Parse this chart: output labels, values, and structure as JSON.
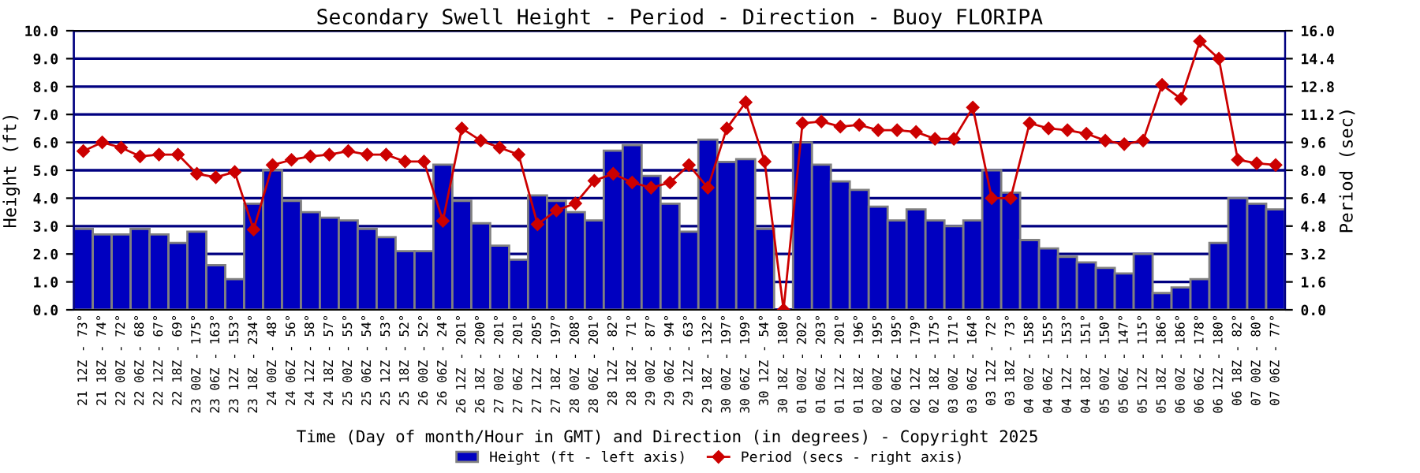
{
  "chart_data": {
    "type": "bar",
    "title": "Secondary Swell Height - Period - Direction - Buoy FLORIPA",
    "xlabel": "Time (Day of month/Hour in GMT) and Direction (in degrees) - Copyright 2025",
    "ylabel": "Height (ft)",
    "y2label": "Period (sec)",
    "categories": [
      "21 12Z - 73°",
      "21 18Z - 74°",
      "22 00Z - 72°",
      "22 06Z - 68°",
      "22 12Z - 67°",
      "22 18Z - 69°",
      "23 00Z - 175°",
      "23 06Z - 163°",
      "23 12Z - 153°",
      "23 18Z - 234°",
      "24 00Z - 48°",
      "24 06Z - 56°",
      "24 12Z - 58°",
      "24 18Z - 57°",
      "25 00Z - 55°",
      "25 06Z - 54°",
      "25 12Z - 53°",
      "25 18Z - 52°",
      "26 00Z - 52°",
      "26 06Z - 24°",
      "26 12Z - 201°",
      "26 18Z - 200°",
      "27 00Z - 201°",
      "27 06Z - 201°",
      "27 12Z - 205°",
      "27 18Z - 197°",
      "28 00Z - 208°",
      "28 06Z - 201°",
      "28 12Z - 82°",
      "28 18Z - 71°",
      "29 00Z - 87°",
      "29 06Z - 94°",
      "29 12Z - 63°",
      "29 18Z - 132°",
      "30 00Z - 197°",
      "30 06Z - 199°",
      "30 12Z - 54°",
      "30 18Z - 180°",
      "01 00Z - 202°",
      "01 06Z - 203°",
      "01 12Z - 201°",
      "01 18Z - 196°",
      "02 00Z - 195°",
      "02 06Z - 195°",
      "02 12Z - 179°",
      "02 18Z - 175°",
      "03 00Z - 171°",
      "03 06Z - 164°",
      "03 12Z - 72°",
      "03 18Z - 73°",
      "04 00Z - 158°",
      "04 06Z - 155°",
      "04 12Z - 153°",
      "04 18Z - 151°",
      "05 00Z - 150°",
      "05 06Z - 147°",
      "05 12Z - 115°",
      "05 18Z - 186°",
      "06 00Z - 186°",
      "06 06Z - 178°",
      "06 12Z - 180°",
      "06 18Z - 82°",
      "07 00Z - 80°",
      "07 06Z - 77°"
    ],
    "series": [
      {
        "name": "Height (ft - left axis)",
        "color": "#0000c0",
        "values": [
          2.9,
          2.7,
          2.7,
          2.9,
          2.7,
          2.4,
          2.8,
          1.6,
          1.1,
          3.8,
          5.0,
          3.9,
          3.5,
          3.3,
          3.2,
          2.9,
          2.6,
          2.1,
          2.1,
          5.2,
          3.9,
          3.1,
          2.3,
          1.8,
          4.1,
          3.9,
          3.5,
          3.2,
          5.7,
          5.9,
          4.8,
          3.8,
          2.8,
          6.1,
          5.3,
          5.4,
          2.9,
          0,
          6.0,
          5.2,
          4.6,
          4.3,
          3.7,
          3.2,
          3.6,
          3.2,
          3.0,
          3.2,
          5.0,
          4.2,
          2.5,
          2.2,
          1.9,
          1.7,
          1.5,
          1.3,
          2.0,
          0.6,
          0.8,
          1.1,
          2.4,
          4.0,
          3.8,
          3.6
        ]
      },
      {
        "name": "Period (secs - right axis)",
        "type": "line",
        "axis": "y2",
        "color": "#cc0000",
        "marker": "diamond",
        "values": [
          9.1,
          9.6,
          9.3,
          8.8,
          8.9,
          8.9,
          7.8,
          7.6,
          7.9,
          4.6,
          8.3,
          8.6,
          8.8,
          8.9,
          9.1,
          8.9,
          8.9,
          8.5,
          8.5,
          5.1,
          10.4,
          9.7,
          9.3,
          8.9,
          4.9,
          5.7,
          6.1,
          7.4,
          7.8,
          7.3,
          7.0,
          7.3,
          8.3,
          7.0,
          10.4,
          11.9,
          8.5,
          0,
          10.7,
          10.8,
          10.5,
          10.6,
          10.3,
          10.3,
          10.2,
          9.8,
          9.8,
          11.6,
          6.4,
          6.4,
          10.7,
          10.4,
          10.3,
          10.1,
          9.7,
          9.5,
          9.7,
          12.9,
          12.1,
          15.4,
          14.4,
          8.6,
          8.4,
          8.3
        ]
      }
    ],
    "ylim": [
      0,
      10
    ],
    "yticks": [
      {
        "value": 0,
        "label": "0.0"
      },
      {
        "value": 1,
        "label": "1.0"
      },
      {
        "value": 2,
        "label": "2.0"
      },
      {
        "value": 3,
        "label": "3.0"
      },
      {
        "value": 4,
        "label": "4.0"
      },
      {
        "value": 5,
        "label": "5.0"
      },
      {
        "value": 6,
        "label": "6.0"
      },
      {
        "value": 7,
        "label": "7.0"
      },
      {
        "value": 8,
        "label": "8.0"
      },
      {
        "value": 9,
        "label": "9.0"
      },
      {
        "value": 10,
        "label": "10.0"
      }
    ],
    "y2lim": [
      0,
      16
    ],
    "y2ticks": [
      {
        "value": 0,
        "label": "0.0"
      },
      1.6,
      3.2,
      4.8,
      6.4,
      {
        "value": 8,
        "label": "8.0"
      },
      9.6,
      11.2,
      12.8,
      14.4,
      {
        "value": 16,
        "label": "16.0"
      }
    ],
    "grid": "y",
    "legend": "bottom"
  }
}
